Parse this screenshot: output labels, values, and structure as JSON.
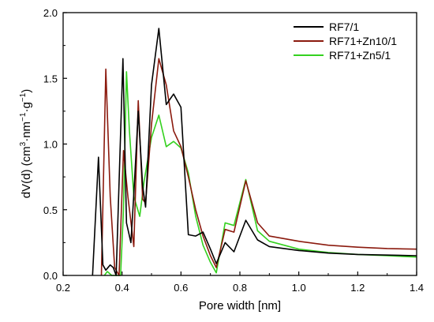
{
  "chart_data": {
    "type": "line",
    "title": "",
    "xlabel": "Pore width [nm]",
    "ylabel_parts": [
      "dV(d) (cm",
      "3",
      "·nm",
      "−1",
      "·g",
      "−1",
      ")"
    ],
    "xlim": [
      0.2,
      1.4
    ],
    "ylim": [
      0.0,
      2.0
    ],
    "xticks": [
      "0.2",
      "0.4",
      "0.6",
      "0.8",
      "1.0",
      "1.2",
      "1.4"
    ],
    "yticks": [
      "0.0",
      "0.5",
      "1.0",
      "1.5",
      "2.0"
    ],
    "grid": false,
    "legend_position": "top-right",
    "series": [
      {
        "name": "RF7/1",
        "color": "#000000",
        "x": [
          0.3,
          0.32,
          0.335,
          0.345,
          0.36,
          0.37,
          0.38,
          0.403,
          0.415,
          0.43,
          0.44,
          0.455,
          0.47,
          0.48,
          0.5,
          0.525,
          0.55,
          0.575,
          0.6,
          0.625,
          0.65,
          0.675,
          0.7,
          0.72,
          0.75,
          0.78,
          0.82,
          0.86,
          0.9,
          1.0,
          1.1,
          1.2,
          1.3,
          1.4
        ],
        "y": [
          0.0,
          0.9,
          0.08,
          0.04,
          0.08,
          0.06,
          0.0,
          1.65,
          0.4,
          0.25,
          0.62,
          1.25,
          0.68,
          0.52,
          1.45,
          1.88,
          1.3,
          1.38,
          1.28,
          0.31,
          0.3,
          0.33,
          0.2,
          0.09,
          0.25,
          0.18,
          0.42,
          0.27,
          0.22,
          0.19,
          0.17,
          0.16,
          0.155,
          0.15
        ]
      },
      {
        "name": "RF71+Zn10/1",
        "color": "#8b1a0e",
        "x": [
          0.33,
          0.345,
          0.36,
          0.375,
          0.39,
          0.405,
          0.42,
          0.44,
          0.455,
          0.47,
          0.48,
          0.5,
          0.525,
          0.55,
          0.575,
          0.6,
          0.625,
          0.65,
          0.675,
          0.7,
          0.72,
          0.75,
          0.78,
          0.82,
          0.86,
          0.9,
          1.0,
          1.1,
          1.2,
          1.3,
          1.4
        ],
        "y": [
          0.0,
          1.57,
          0.6,
          0.06,
          0.0,
          0.95,
          0.6,
          0.22,
          1.33,
          0.58,
          0.55,
          1.15,
          1.65,
          1.45,
          1.1,
          0.98,
          0.75,
          0.5,
          0.3,
          0.15,
          0.06,
          0.35,
          0.33,
          0.72,
          0.4,
          0.3,
          0.26,
          0.23,
          0.215,
          0.205,
          0.2
        ]
      },
      {
        "name": "RF71+Zn5/1",
        "color": "#34d11f",
        "x": [
          0.34,
          0.35,
          0.365,
          0.38,
          0.395,
          0.405,
          0.415,
          0.425,
          0.44,
          0.46,
          0.475,
          0.5,
          0.525,
          0.55,
          0.575,
          0.6,
          0.625,
          0.65,
          0.675,
          0.7,
          0.72,
          0.75,
          0.78,
          0.82,
          0.86,
          0.9,
          1.0,
          1.1,
          1.2,
          1.3,
          1.4
        ],
        "y": [
          0.0,
          0.03,
          0.0,
          0.0,
          0.0,
          0.5,
          1.55,
          1.1,
          0.6,
          0.45,
          0.72,
          1.05,
          1.22,
          0.98,
          1.02,
          0.97,
          0.78,
          0.45,
          0.23,
          0.1,
          0.02,
          0.4,
          0.38,
          0.73,
          0.34,
          0.26,
          0.2,
          0.175,
          0.16,
          0.15,
          0.14
        ]
      }
    ]
  }
}
